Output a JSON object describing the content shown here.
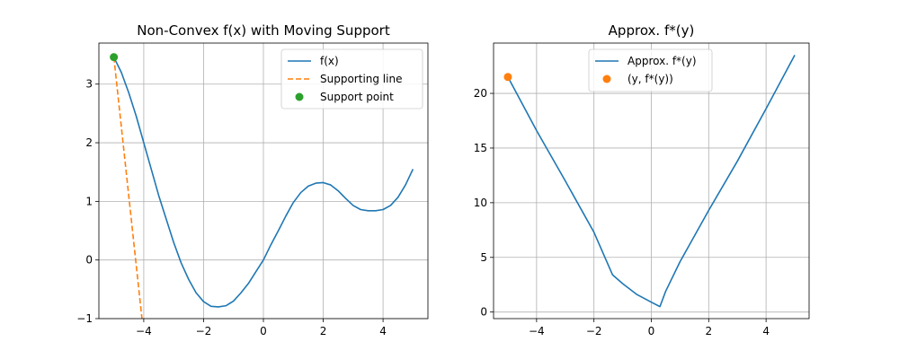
{
  "chart_data": [
    {
      "type": "line",
      "title": "Non-Convex f(x) with Moving Support",
      "xlabel": "",
      "ylabel": "",
      "xlim": [
        -5.5,
        5.5
      ],
      "ylim": [
        -1.0,
        3.7
      ],
      "xticks": [
        -4,
        -2,
        0,
        2,
        4
      ],
      "xtick_labels": [
        "−4",
        "−2",
        "0",
        "2",
        "4"
      ],
      "yticks": [
        -1,
        0,
        1,
        2,
        3
      ],
      "ytick_labels": [
        "−1",
        "0",
        "1",
        "2",
        "3"
      ],
      "grid": true,
      "legend_position": "top-right",
      "series": [
        {
          "name": "f(x)",
          "style": "line",
          "color": "#1f77b4",
          "x": [
            -5.0,
            -4.75,
            -4.5,
            -4.25,
            -4.0,
            -3.75,
            -3.5,
            -3.25,
            -3.0,
            -2.75,
            -2.5,
            -2.25,
            -2.0,
            -1.75,
            -1.5,
            -1.25,
            -1.0,
            -0.75,
            -0.5,
            -0.25,
            0.0,
            0.25,
            0.5,
            0.75,
            1.0,
            1.25,
            1.5,
            1.75,
            2.0,
            2.25,
            2.5,
            2.75,
            3.0,
            3.25,
            3.5,
            3.75,
            4.0,
            4.25,
            4.5,
            4.75,
            5.0
          ],
          "y": [
            3.46,
            3.2,
            2.85,
            2.45,
            2.0,
            1.55,
            1.1,
            0.7,
            0.3,
            -0.05,
            -0.33,
            -0.56,
            -0.71,
            -0.79,
            -0.8,
            -0.78,
            -0.7,
            -0.56,
            -0.4,
            -0.2,
            0.0,
            0.26,
            0.5,
            0.75,
            0.98,
            1.15,
            1.26,
            1.31,
            1.32,
            1.28,
            1.18,
            1.05,
            0.93,
            0.86,
            0.84,
            0.84,
            0.86,
            0.93,
            1.07,
            1.28,
            1.55
          ]
        },
        {
          "name": "Supporting line",
          "style": "dashed",
          "color": "#ff7f0e",
          "x": [
            -5.0,
            -4.06
          ],
          "y": [
            3.46,
            -1.0
          ]
        },
        {
          "name": "Support point",
          "style": "point",
          "color": "#2ca02c",
          "x": [
            -5.0
          ],
          "y": [
            3.46
          ]
        }
      ]
    },
    {
      "type": "line",
      "title": "Approx. f*(y)",
      "xlabel": "",
      "ylabel": "",
      "xlim": [
        -5.5,
        5.5
      ],
      "ylim": [
        -0.6,
        24.6
      ],
      "xticks": [
        -4,
        -2,
        0,
        2,
        4
      ],
      "xtick_labels": [
        "−4",
        "−2",
        "0",
        "2",
        "4"
      ],
      "yticks": [
        0,
        5,
        10,
        15,
        20
      ],
      "ytick_labels": [
        "0",
        "5",
        "10",
        "15",
        "20"
      ],
      "grid": true,
      "legend_position": "top-center",
      "series": [
        {
          "name": "Approx. f*(y)",
          "style": "line",
          "color": "#1f77b4",
          "x": [
            -5.0,
            -4.0,
            -3.0,
            -2.0,
            -1.35,
            -1.0,
            -0.5,
            0.0,
            0.3,
            0.5,
            1.0,
            2.0,
            3.0,
            4.0,
            5.0
          ],
          "y": [
            21.5,
            16.6,
            12.0,
            7.3,
            3.4,
            2.6,
            1.6,
            0.9,
            0.5,
            1.9,
            4.6,
            9.3,
            13.8,
            18.6,
            23.5
          ]
        },
        {
          "name": "(y, f*(y))",
          "style": "point",
          "color": "#ff7f0e",
          "x": [
            -5.0
          ],
          "y": [
            21.5
          ]
        }
      ]
    }
  ]
}
